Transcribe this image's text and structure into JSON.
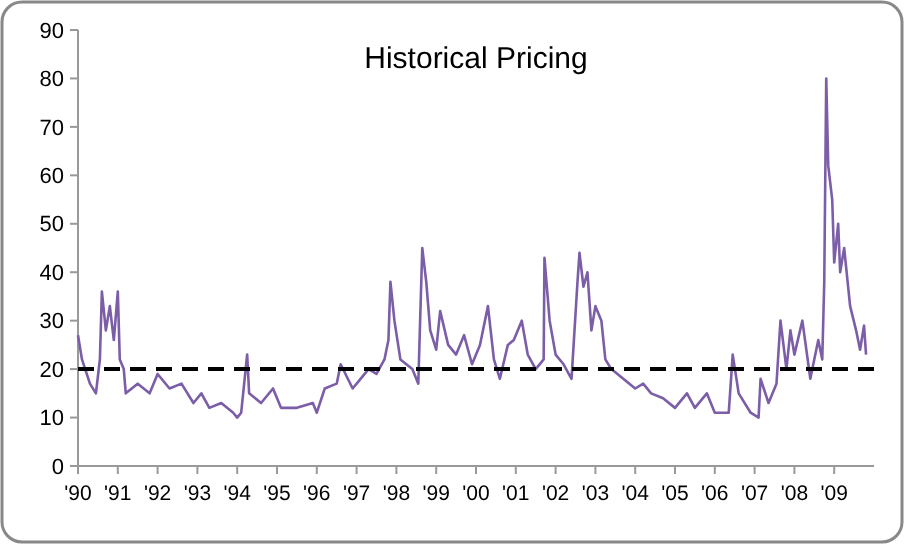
{
  "chart_data": {
    "type": "line",
    "title": "Historical Pricing",
    "x": [
      1990.0,
      1990.1,
      1990.3,
      1990.45,
      1990.55,
      1990.6,
      1990.7,
      1990.8,
      1990.9,
      1991.0,
      1991.05,
      1991.15,
      1991.2,
      1991.5,
      1991.8,
      1992.0,
      1992.3,
      1992.6,
      1992.9,
      1993.1,
      1993.3,
      1993.6,
      1993.9,
      1994.0,
      1994.1,
      1994.25,
      1994.3,
      1994.6,
      1994.9,
      1995.1,
      1995.5,
      1995.9,
      1996.0,
      1996.2,
      1996.5,
      1996.6,
      1996.9,
      1997.1,
      1997.3,
      1997.5,
      1997.7,
      1997.8,
      1997.85,
      1997.95,
      1998.1,
      1998.4,
      1998.55,
      1998.65,
      1998.75,
      1998.85,
      1999.0,
      1999.1,
      1999.3,
      1999.5,
      1999.7,
      1999.9,
      2000.1,
      2000.3,
      2000.45,
      2000.6,
      2000.8,
      2000.95,
      2001.15,
      2001.3,
      2001.5,
      2001.7,
      2001.72,
      2001.85,
      2002.0,
      2002.2,
      2002.4,
      2002.55,
      2002.6,
      2002.7,
      2002.8,
      2002.9,
      2003.0,
      2003.15,
      2003.25,
      2003.4,
      2003.7,
      2004.0,
      2004.2,
      2004.4,
      2004.7,
      2005.0,
      2005.3,
      2005.5,
      2005.8,
      2006.0,
      2006.35,
      2006.45,
      2006.6,
      2006.9,
      2007.1,
      2007.15,
      2007.35,
      2007.55,
      2007.65,
      2007.8,
      2007.9,
      2008.0,
      2008.2,
      2008.4,
      2008.6,
      2008.7,
      2008.75,
      2008.8,
      2008.85,
      2008.95,
      2009.0,
      2009.1,
      2009.15,
      2009.25,
      2009.4,
      2009.55,
      2009.65,
      2009.75,
      2009.8
    ],
    "series": [
      {
        "color": "#7b5ea7",
        "values": [
          27,
          22,
          17,
          15,
          22,
          36,
          28,
          33,
          26,
          36,
          22,
          20,
          15,
          17,
          15,
          19,
          16,
          17,
          13,
          15,
          12,
          13,
          11,
          10,
          11,
          23,
          15,
          13,
          16,
          12,
          12,
          13,
          11,
          16,
          17,
          21,
          16,
          18,
          20,
          19,
          22,
          26,
          38,
          30,
          22,
          20,
          17,
          45,
          38,
          28,
          24,
          32,
          25,
          23,
          27,
          21,
          25,
          33,
          22,
          18,
          25,
          26,
          30,
          23,
          20,
          22,
          43,
          30,
          23,
          21,
          18,
          38,
          44,
          37,
          40,
          28,
          33,
          30,
          22,
          20,
          18,
          16,
          17,
          15,
          14,
          12,
          15,
          12,
          15,
          11,
          11,
          23,
          15,
          11,
          10,
          18,
          13,
          17,
          30,
          20,
          28,
          23,
          30,
          18,
          26,
          22,
          38,
          80,
          62,
          55,
          42,
          50,
          40,
          45,
          33,
          28,
          24,
          29,
          23
        ]
      }
    ],
    "xlim": [
      1990,
      2010
    ],
    "xticks": [
      {
        "value": 1990,
        "label": "'90"
      },
      {
        "value": 1991,
        "label": "'91"
      },
      {
        "value": 1992,
        "label": "'92"
      },
      {
        "value": 1993,
        "label": "'93"
      },
      {
        "value": 1994,
        "label": "'94"
      },
      {
        "value": 1995,
        "label": "'95"
      },
      {
        "value": 1996,
        "label": "'96"
      },
      {
        "value": 1997,
        "label": "'97"
      },
      {
        "value": 1998,
        "label": "'98"
      },
      {
        "value": 1999,
        "label": "'99"
      },
      {
        "value": 2000,
        "label": "'00"
      },
      {
        "value": 2001,
        "label": "'01"
      },
      {
        "value": 2002,
        "label": "'02"
      },
      {
        "value": 2003,
        "label": "'03"
      },
      {
        "value": 2004,
        "label": "'04"
      },
      {
        "value": 2005,
        "label": "'05"
      },
      {
        "value": 2006,
        "label": "'06"
      },
      {
        "value": 2007,
        "label": "'07"
      },
      {
        "value": 2008,
        "label": "'08"
      },
      {
        "value": 2009,
        "label": "'09"
      }
    ],
    "ylim": [
      0,
      90
    ],
    "yticks": [
      0,
      10,
      20,
      30,
      40,
      50,
      60,
      70,
      80,
      90
    ],
    "ref_lines": [
      {
        "axis": "y",
        "value": 20,
        "color": "#000000",
        "line_style": "dashed"
      }
    ],
    "grid": false,
    "marker": "none",
    "line_style": "solid"
  }
}
